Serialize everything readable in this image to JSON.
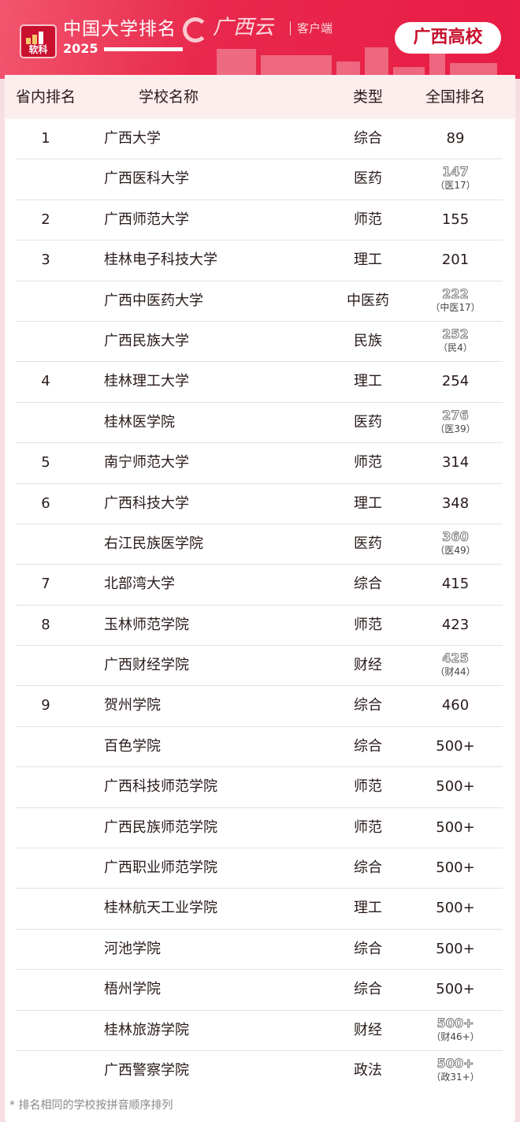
{
  "header": {
    "logo_text": "软科",
    "title": "中国大学排名",
    "year": "2025",
    "brand": "广西云",
    "client": "客户端",
    "badge": "广西高校"
  },
  "table": {
    "columns": [
      "省内排名",
      "学校名称",
      "类型",
      "全国排名"
    ],
    "rows": [
      {
        "rank": "1",
        "name": "广西大学",
        "type": "综合",
        "national": "89",
        "sub": ""
      },
      {
        "rank": "",
        "name": "广西医科大学",
        "type": "医药",
        "national": "147",
        "sub": "（医17）"
      },
      {
        "rank": "2",
        "name": "广西师范大学",
        "type": "师范",
        "national": "155",
        "sub": ""
      },
      {
        "rank": "3",
        "name": "桂林电子科技大学",
        "type": "理工",
        "national": "201",
        "sub": ""
      },
      {
        "rank": "",
        "name": "广西中医药大学",
        "type": "中医药",
        "national": "222",
        "sub": "（中医17）"
      },
      {
        "rank": "",
        "name": "广西民族大学",
        "type": "民族",
        "national": "252",
        "sub": "（民4）"
      },
      {
        "rank": "4",
        "name": "桂林理工大学",
        "type": "理工",
        "national": "254",
        "sub": ""
      },
      {
        "rank": "",
        "name": "桂林医学院",
        "type": "医药",
        "national": "276",
        "sub": "（医39）"
      },
      {
        "rank": "5",
        "name": "南宁师范大学",
        "type": "师范",
        "national": "314",
        "sub": ""
      },
      {
        "rank": "6",
        "name": "广西科技大学",
        "type": "理工",
        "national": "348",
        "sub": ""
      },
      {
        "rank": "",
        "name": "右江民族医学院",
        "type": "医药",
        "national": "360",
        "sub": "（医49）"
      },
      {
        "rank": "7",
        "name": "北部湾大学",
        "type": "综合",
        "national": "415",
        "sub": ""
      },
      {
        "rank": "8",
        "name": "玉林师范学院",
        "type": "师范",
        "national": "423",
        "sub": ""
      },
      {
        "rank": "",
        "name": "广西财经学院",
        "type": "财经",
        "national": "425",
        "sub": "（财44）"
      },
      {
        "rank": "9",
        "name": "贺州学院",
        "type": "综合",
        "national": "460",
        "sub": ""
      },
      {
        "rank": "",
        "name": "百色学院",
        "type": "综合",
        "national": "500+",
        "sub": ""
      },
      {
        "rank": "",
        "name": "广西科技师范学院",
        "type": "师范",
        "national": "500+",
        "sub": ""
      },
      {
        "rank": "",
        "name": "广西民族师范学院",
        "type": "师范",
        "national": "500+",
        "sub": ""
      },
      {
        "rank": "",
        "name": "广西职业师范学院",
        "type": "综合",
        "national": "500+",
        "sub": ""
      },
      {
        "rank": "",
        "name": "桂林航天工业学院",
        "type": "理工",
        "national": "500+",
        "sub": ""
      },
      {
        "rank": "",
        "name": "河池学院",
        "type": "综合",
        "national": "500+",
        "sub": ""
      },
      {
        "rank": "",
        "name": "梧州学院",
        "type": "综合",
        "national": "500+",
        "sub": ""
      },
      {
        "rank": "",
        "name": "桂林旅游学院",
        "type": "财经",
        "national": "500+",
        "sub": "（财46+）"
      },
      {
        "rank": "",
        "name": "广西警察学院",
        "type": "政法",
        "national": "500+",
        "sub": "（政31+）"
      }
    ]
  },
  "footnote": "* 排名相同的学校按拼音顺序排列",
  "colors": {
    "accent": "#e8284c",
    "header_row": "#fdeeee",
    "badge_text": "#c8102e"
  }
}
